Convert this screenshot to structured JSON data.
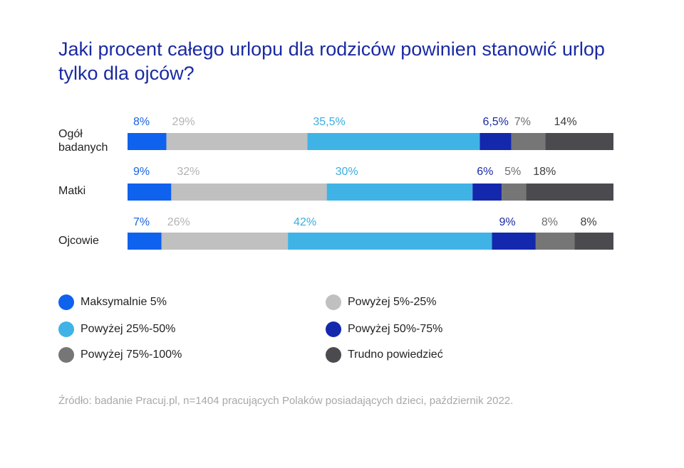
{
  "chart_data": {
    "type": "bar",
    "orientation": "horizontal-stacked-100",
    "title": "Jaki procent całego urlopu dla rodziców powinien stanowić urlop tylko dla ojców?",
    "categories": [
      "Ogół badanych",
      "Matki",
      "Ojcowie"
    ],
    "series": [
      {
        "name": "Maksymalnie 5%",
        "color": "#0f62ee",
        "label_color": "#1a63e0",
        "values": [
          8,
          9,
          7
        ],
        "labels": [
          "8%",
          "9%",
          "7%"
        ]
      },
      {
        "name": "Powyżej 5%-25%",
        "color": "#c0c0c0",
        "label_color": "#b3b3b3",
        "values": [
          29,
          32,
          26
        ],
        "labels": [
          "29%",
          "32%",
          "26%"
        ]
      },
      {
        "name": "Powyżej 25%-50%",
        "color": "#40b3e6",
        "label_color": "#3aaee0",
        "values": [
          35.5,
          30,
          42
        ],
        "labels": [
          "35,5%",
          "30%",
          "42%"
        ]
      },
      {
        "name": "Powyżej 50%-75%",
        "color": "#1328ad",
        "label_color": "#1a2aa3",
        "values": [
          6.5,
          6,
          9
        ],
        "labels": [
          "6,5%",
          "6%",
          "9%"
        ]
      },
      {
        "name": "Powyżej 75%-100%",
        "color": "#767676",
        "label_color": "#6e6e6e",
        "values": [
          7,
          5,
          8
        ],
        "labels": [
          "7%",
          "5%",
          "8%"
        ]
      },
      {
        "name": "Trudno powiedzieć",
        "color": "#4b4b4f",
        "label_color": "#3c3c3c",
        "values": [
          14,
          18,
          8
        ],
        "labels": [
          "14%",
          "18%",
          "8%"
        ]
      }
    ],
    "xlim": [
      0,
      100
    ],
    "grid": false,
    "legend_position": "bottom"
  },
  "category_lines": [
    [
      "Ogół",
      "badanych"
    ],
    [
      "Matki"
    ],
    [
      "Ojcowie"
    ]
  ],
  "source": "Źródło: badanie Pracuj.pl, n=1404 pracujących Polaków posiadających dzieci, październik 2022."
}
